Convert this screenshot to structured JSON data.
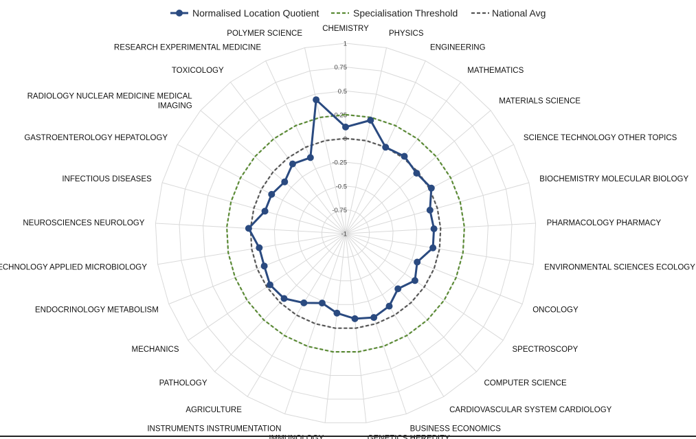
{
  "chart_data": {
    "type": "radar",
    "categories": [
      "CHEMISTRY",
      "PHYSICS",
      "ENGINEERING",
      "MATHEMATICS",
      "MATERIALS SCIENCE",
      "SCIENCE TECHNOLOGY OTHER TOPICS",
      "BIOCHEMISTRY MOLECULAR BIOLOGY",
      "PHARMACOLOGY PHARMACY",
      "ENVIRONMENTAL SCIENCES ECOLOGY",
      "ONCOLOGY",
      "SPECTROSCOPY",
      "COMPUTER SCIENCE",
      "CARDIOVASCULAR SYSTEM CARDIOLOGY",
      "BUSINESS ECONOMICS",
      "GENETICS HEREDITY",
      "IMMUNOLOGY",
      "INSTRUMENTS INSTRUMENTATION",
      "AGRICULTURE",
      "PATHOLOGY",
      "MECHANICS",
      "ENDOCRINOLOGY METABOLISM",
      "BIOTECHNOLOGY APPLIED MICROBIOLOGY",
      "NEUROSCIENCES NEUROLOGY",
      "INFECTIOUS DISEASES",
      "GASTROENTEROLOGY HEPATOLOGY",
      "RADIOLOGY NUCLEAR MEDICINE MEDICAL IMAGING",
      "TOXICOLOGY",
      "RESEARCH EXPERIMENTAL MEDICINE",
      "POLYMER SCIENCE"
    ],
    "series": [
      {
        "name": "Normalised Location Quotient",
        "color": "#2a4a80",
        "style": "solid-markers",
        "values": [
          0.12,
          0.22,
          0.0,
          0.02,
          -0.02,
          0.02,
          -0.08,
          -0.07,
          -0.07,
          -0.19,
          -0.12,
          -0.2,
          -0.11,
          -0.07,
          -0.1,
          -0.16,
          -0.23,
          -0.15,
          -0.06,
          -0.04,
          -0.08,
          -0.08,
          0.02,
          -0.12,
          -0.12,
          -0.16,
          -0.08,
          -0.12,
          0.44
        ]
      },
      {
        "name": "Specialisation Threshold",
        "color": "#5a8a34",
        "style": "dashed",
        "values": [
          0.25,
          0.25,
          0.25,
          0.25,
          0.25,
          0.25,
          0.25,
          0.25,
          0.25,
          0.25,
          0.25,
          0.25,
          0.25,
          0.25,
          0.25,
          0.25,
          0.25,
          0.25,
          0.25,
          0.25,
          0.25,
          0.25,
          0.25,
          0.25,
          0.25,
          0.25,
          0.25,
          0.25,
          0.25
        ]
      },
      {
        "name": "National Avg",
        "color": "#555555",
        "style": "dashed",
        "values": [
          0,
          0,
          0,
          0,
          0,
          0,
          0,
          0,
          0,
          0,
          0,
          0,
          0,
          0,
          0,
          0,
          0,
          0,
          0,
          0,
          0,
          0,
          0,
          0,
          0,
          0,
          0,
          0,
          0
        ]
      }
    ],
    "r_ticks": [
      -1,
      -0.75,
      -0.5,
      -0.25,
      0,
      0.25,
      0.5,
      0.75,
      1
    ],
    "r_tick_labels": [
      "-1",
      "-0.75",
      "-0.5",
      "-0.25",
      "0",
      "0.25",
      "0.5",
      "0.75",
      "1"
    ],
    "rlim": [
      -1,
      1
    ],
    "grid": true,
    "legend_position": "top"
  }
}
